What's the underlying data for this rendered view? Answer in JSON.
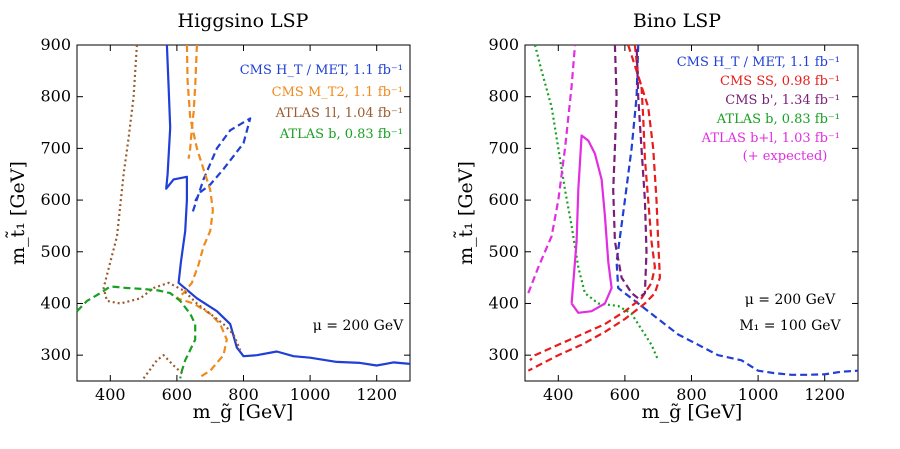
{
  "chart_data": [
    {
      "type": "line",
      "title": "Higgsino LSP",
      "xlabel": "m_g̃  [GeV]",
      "ylabel": "m_t̃₁  [GeV]",
      "xlim": [
        300,
        1300
      ],
      "ylim": [
        250,
        900
      ],
      "xticks": [
        400,
        600,
        800,
        1000,
        1200
      ],
      "yticks": [
        300,
        400,
        500,
        600,
        700,
        800,
        900
      ],
      "xtick_labels": [
        "400",
        "600",
        "800",
        "1000",
        "1200"
      ],
      "ytick_labels": [
        "300",
        "400",
        "500",
        "600",
        "700",
        "800",
        "900"
      ],
      "annotation": "μ  =  200 GeV",
      "series": [
        {
          "name": "CMS H_T / MET,  1.1 fb⁻¹",
          "color": "#1f3fd6",
          "style": "solid",
          "points": [
            [
              570,
              900
            ],
            [
              575,
              820
            ],
            [
              580,
              740
            ],
            [
              572,
              650
            ],
            [
              568,
              622
            ],
            [
              590,
              640
            ],
            [
              630,
              645
            ],
            [
              630,
              600
            ],
            [
              625,
              540
            ],
            [
              612,
              480
            ],
            [
              605,
              440
            ],
            [
              660,
              410
            ],
            [
              720,
              385
            ],
            [
              760,
              360
            ],
            [
              780,
              315
            ],
            [
              800,
              298
            ],
            [
              840,
              300
            ],
            [
              900,
              307
            ],
            [
              950,
              298
            ],
            [
              1000,
              295
            ],
            [
              1080,
              287
            ],
            [
              1150,
              285
            ],
            [
              1200,
              280
            ],
            [
              1250,
              286
            ],
            [
              1300,
              283
            ]
          ]
        },
        {
          "name": "CMS H_T / MET,  1.1 fb⁻¹ (dashed)",
          "color": "#1f3fd6",
          "style": "dashed",
          "points": [
            [
              648,
              578
            ],
            [
              680,
              640
            ],
            [
              720,
              700
            ],
            [
              760,
              735
            ],
            [
              820,
              758
            ],
            [
              800,
              710
            ],
            [
              740,
              660
            ],
            [
              700,
              630
            ],
            [
              670,
              615
            ],
            [
              655,
              598
            ]
          ]
        },
        {
          "name": "CMS M_T2,  1.1 fb⁻¹",
          "color": "#f08a1c",
          "style": "dashed",
          "points": [
            [
              630,
              900
            ],
            [
              632,
              830
            ],
            [
              640,
              760
            ],
            [
              660,
              700
            ],
            [
              680,
              660
            ],
            [
              700,
              620
            ],
            [
              708,
              580
            ],
            [
              700,
              540
            ],
            [
              680,
              510
            ],
            [
              665,
              475
            ],
            [
              645,
              440
            ],
            [
              620,
              420
            ],
            [
              600,
              410
            ],
            [
              650,
              400
            ],
            [
              700,
              380
            ],
            [
              730,
              360
            ],
            [
              750,
              330
            ],
            [
              740,
              300
            ],
            [
              700,
              270
            ],
            [
              670,
              258
            ]
          ]
        },
        {
          "name": "CMS M_T2,  1.1 fb⁻¹ (inner)",
          "color": "#f08a1c",
          "style": "dashed",
          "points": [
            [
              660,
              900
            ],
            [
              655,
              820
            ],
            [
              650,
              770
            ],
            [
              645,
              740
            ],
            [
              640,
              700
            ],
            [
              635,
              680
            ]
          ]
        },
        {
          "name": "ATLAS 1l,  1.04 fb⁻¹",
          "color": "#9a5b2e",
          "style": "dotted",
          "points": [
            [
              480,
              900
            ],
            [
              470,
              800
            ],
            [
              455,
              720
            ],
            [
              440,
              650
            ],
            [
              430,
              590
            ],
            [
              420,
              530
            ],
            [
              400,
              480
            ],
            [
              380,
              430
            ],
            [
              390,
              405
            ],
            [
              430,
              400
            ],
            [
              490,
              410
            ],
            [
              530,
              430
            ],
            [
              575,
              440
            ],
            [
              620,
              425
            ],
            [
              660,
              400
            ],
            [
              700,
              380
            ],
            [
              740,
              360
            ],
            [
              770,
              340
            ],
            [
              790,
              310
            ]
          ]
        },
        {
          "name": "ATLAS 1l,  1.04 fb⁻¹ (lower)",
          "color": "#9a5b2e",
          "style": "dotted",
          "points": [
            [
              500,
              255
            ],
            [
              540,
              290
            ],
            [
              560,
              300
            ],
            [
              590,
              280
            ],
            [
              620,
              262
            ]
          ]
        },
        {
          "name": "ATLAS b,  0.83 fb⁻¹",
          "color": "#18a022",
          "style": "dashed",
          "points": [
            [
              300,
              385
            ],
            [
              330,
              405
            ],
            [
              370,
              420
            ],
            [
              400,
              433
            ],
            [
              450,
              430
            ],
            [
              500,
              428
            ],
            [
              545,
              425
            ],
            [
              580,
              420
            ],
            [
              610,
              405
            ],
            [
              640,
              380
            ],
            [
              655,
              360
            ],
            [
              655,
              330
            ],
            [
              640,
              310
            ],
            [
              625,
              290
            ],
            [
              615,
              270
            ],
            [
              610,
              255
            ]
          ]
        }
      ]
    },
    {
      "type": "line",
      "title": "Bino LSP",
      "xlabel": "m_g̃  [GeV]",
      "ylabel": "m_t̃₁  [GeV]",
      "xlim": [
        300,
        1300
      ],
      "ylim": [
        250,
        900
      ],
      "xticks": [
        400,
        600,
        800,
        1000,
        1200
      ],
      "yticks": [
        300,
        400,
        500,
        600,
        700,
        800,
        900
      ],
      "xtick_labels": [
        "400",
        "600",
        "800",
        "1000",
        "1200"
      ],
      "ytick_labels": [
        "300",
        "400",
        "500",
        "600",
        "700",
        "800",
        "900"
      ],
      "annotation": "μ  =  200 GeV",
      "annotation2": "M₁  =  100 GeV",
      "legend_note": "(+ expected)",
      "series": [
        {
          "name": "CMS H_T / MET,  1.1 fb⁻¹",
          "color": "#1f3fd6",
          "style": "dashed",
          "points": [
            [
              640,
              900
            ],
            [
              635,
              800
            ],
            [
              620,
              700
            ],
            [
              600,
              600
            ],
            [
              575,
              480
            ],
            [
              580,
              430
            ],
            [
              640,
              400
            ],
            [
              700,
              370
            ],
            [
              760,
              340
            ],
            [
              820,
              320
            ],
            [
              880,
              300
            ],
            [
              950,
              290
            ],
            [
              1000,
              270
            ],
            [
              1050,
              265
            ],
            [
              1100,
              262
            ],
            [
              1150,
              262
            ],
            [
              1200,
              263
            ],
            [
              1250,
              268
            ],
            [
              1300,
              270
            ]
          ]
        },
        {
          "name": "CMS SS,  0.98 fb⁻¹",
          "color": "#e81c1c",
          "style": "dashed",
          "points": [
            [
              610,
              900
            ],
            [
              630,
              860
            ],
            [
              650,
              820
            ],
            [
              655,
              760
            ],
            [
              660,
              680
            ],
            [
              670,
              600
            ],
            [
              680,
              520
            ],
            [
              690,
              470
            ],
            [
              680,
              440
            ],
            [
              650,
              410
            ],
            [
              600,
              385
            ],
            [
              540,
              360
            ],
            [
              470,
              340
            ],
            [
              400,
              320
            ],
            [
              330,
              300
            ],
            [
              315,
              290
            ]
          ]
        },
        {
          "name": "CMS SS,  0.98 fb⁻¹ (outer)",
          "color": "#e81c1c",
          "style": "dashed",
          "points": [
            [
              630,
              900
            ],
            [
              640,
              840
            ],
            [
              670,
              780
            ],
            [
              685,
              700
            ],
            [
              695,
              600
            ],
            [
              700,
              520
            ],
            [
              705,
              450
            ],
            [
              690,
              420
            ],
            [
              660,
              400
            ],
            [
              600,
              370
            ],
            [
              540,
              345
            ],
            [
              470,
              320
            ],
            [
              400,
              300
            ],
            [
              340,
              280
            ],
            [
              310,
              270
            ]
          ]
        },
        {
          "name": "CMS b',  1.34 fb⁻¹",
          "color": "#7a1c7a",
          "style": "dashed",
          "points": [
            [
              570,
              900
            ],
            [
              575,
              800
            ],
            [
              570,
              700
            ],
            [
              565,
              620
            ],
            [
              570,
              520
            ],
            [
              590,
              450
            ],
            [
              620,
              420
            ],
            [
              640,
              410
            ],
            [
              660,
              420
            ],
            [
              665,
              500
            ],
            [
              660,
              600
            ],
            [
              650,
              700
            ],
            [
              640,
              800
            ],
            [
              635,
              900
            ]
          ]
        },
        {
          "name": "ATLAS b,  0.83 fb⁻¹",
          "color": "#18a022",
          "style": "dotted",
          "points": [
            [
              330,
              900
            ],
            [
              350,
              850
            ],
            [
              380,
              780
            ],
            [
              400,
              700
            ],
            [
              420,
              620
            ],
            [
              440,
              550
            ],
            [
              460,
              470
            ],
            [
              480,
              420
            ],
            [
              520,
              400
            ],
            [
              580,
              395
            ],
            [
              620,
              380
            ],
            [
              650,
              350
            ],
            [
              680,
              320
            ],
            [
              700,
              290
            ]
          ]
        },
        {
          "name": "ATLAS b+l,  1.03 fb⁻¹",
          "color": "#e12ee1",
          "style": "solid",
          "points": [
            [
              440,
              400
            ],
            [
              455,
              520
            ],
            [
              460,
              620
            ],
            [
              470,
              725
            ],
            [
              490,
              715
            ],
            [
              510,
              690
            ],
            [
              530,
              640
            ],
            [
              540,
              570
            ],
            [
              550,
              480
            ],
            [
              560,
              430
            ],
            [
              540,
              400
            ],
            [
              500,
              385
            ],
            [
              460,
              382
            ],
            [
              440,
              400
            ]
          ]
        },
        {
          "name": "ATLAS b+l,  1.03 fb⁻¹ (expected)",
          "color": "#e12ee1",
          "style": "dashed",
          "points": [
            [
              310,
              420
            ],
            [
              340,
              470
            ],
            [
              380,
              530
            ],
            [
              400,
              600
            ],
            [
              420,
              700
            ],
            [
              440,
              820
            ],
            [
              450,
              900
            ]
          ]
        }
      ]
    }
  ]
}
